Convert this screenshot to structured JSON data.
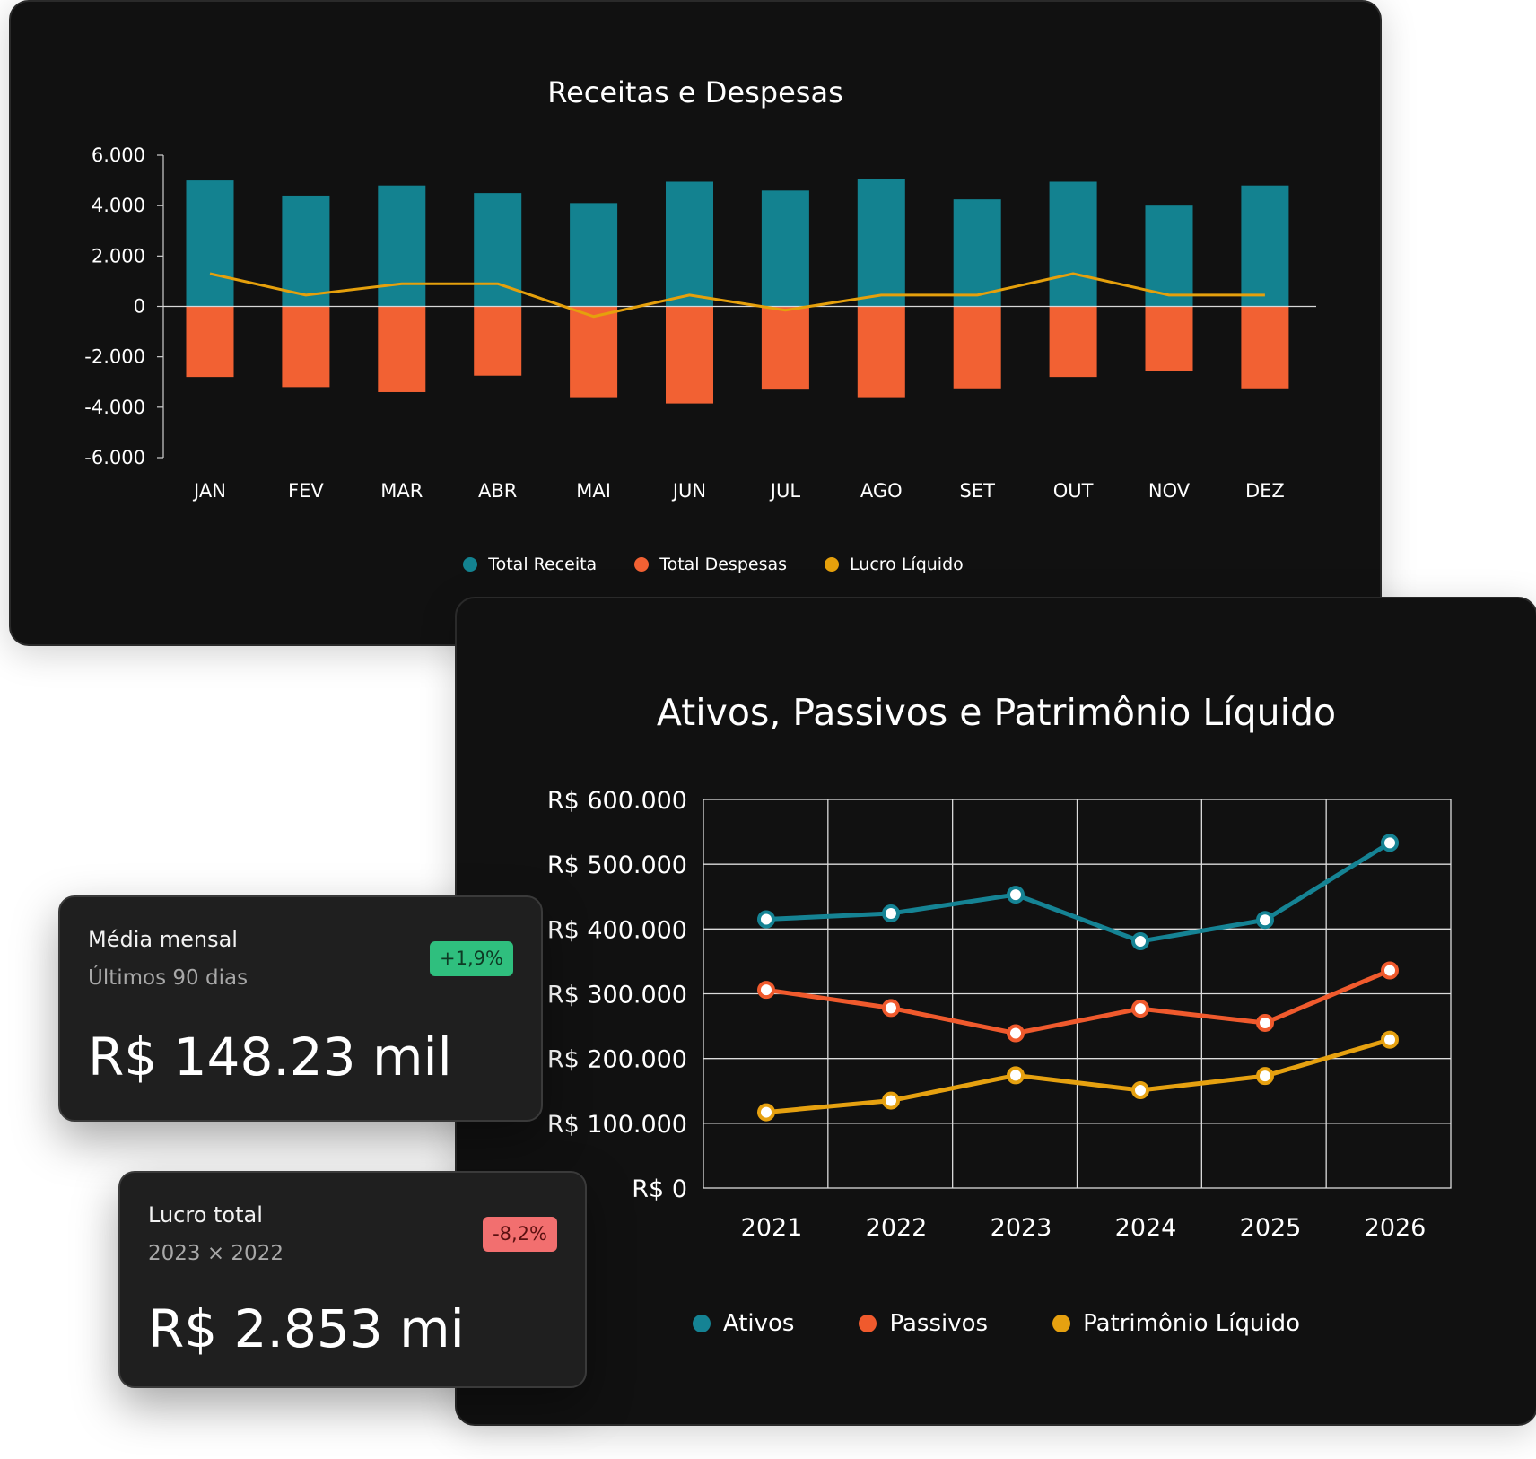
{
  "colors": {
    "receita": "#138290",
    "despesas": "#f26133",
    "lucro": "#e5a00c",
    "ativos": "#158394",
    "passivos": "#f05a2d",
    "patrimonio": "#e6a110"
  },
  "chart_data": [
    {
      "type": "bar",
      "title": "Receitas e Despesas",
      "categories": [
        "JAN",
        "FEV",
        "MAR",
        "ABR",
        "MAI",
        "JUN",
        "JUL",
        "AGO",
        "SET",
        "OUT",
        "NOV",
        "DEZ"
      ],
      "ylim": [
        -6000,
        6000
      ],
      "yticks": [
        "6.000",
        "4.000",
        "2.000",
        "0",
        "-2.000",
        "-4.000",
        "-6.000"
      ],
      "ytick_values": [
        6000,
        4000,
        2000,
        0,
        -2000,
        -4000,
        -6000
      ],
      "series": [
        {
          "name": "Total Receita",
          "kind": "bar",
          "values": [
            5000,
            4400,
            4800,
            4500,
            4100,
            4950,
            4600,
            5050,
            4250,
            4950,
            4000,
            4800
          ]
        },
        {
          "name": "Total Despesas",
          "kind": "bar",
          "values": [
            -2800,
            -3200,
            -3400,
            -2750,
            -3600,
            -3850,
            -3300,
            -3600,
            -3250,
            -2800,
            -2550,
            -3250
          ]
        },
        {
          "name": "Lucro Líquido",
          "kind": "line",
          "values": [
            1300,
            450,
            900,
            900,
            -400,
            450,
            -150,
            450,
            450,
            1300,
            450,
            450
          ]
        }
      ],
      "legend": "bottom",
      "grid": false
    },
    {
      "type": "line",
      "title": "Ativos, Passivos e Patrimônio Líquido",
      "x": [
        "2021",
        "2022",
        "2023",
        "2024",
        "2025",
        "2026"
      ],
      "ylim": [
        0,
        600000
      ],
      "yticks": [
        "R$ 600.000",
        "R$ 500.000",
        "R$ 400.000",
        "R$ 300.000",
        "R$ 200.000",
        "R$ 100.000",
        "R$ 0"
      ],
      "ytick_values": [
        600000,
        500000,
        400000,
        300000,
        200000,
        100000,
        0
      ],
      "series": [
        {
          "name": "Ativos",
          "values": [
            415000,
            424000,
            453000,
            381000,
            414000,
            533000
          ]
        },
        {
          "name": "Passivos",
          "values": [
            306000,
            278000,
            239000,
            277000,
            255000,
            336000
          ]
        },
        {
          "name": "Patrimônio Líquido",
          "values": [
            117000,
            135000,
            174000,
            151000,
            173000,
            229000
          ]
        }
      ],
      "legend": "bottom",
      "grid": true
    }
  ],
  "kpis": [
    {
      "title": "Média mensal",
      "subtitle": "Últimos 90 dias",
      "value": "R$ 148.23 mil",
      "badge": "+1,9%"
    },
    {
      "title": "Lucro total",
      "subtitle": "2023 × 2022",
      "value": "R$ 2.853 mi",
      "badge": "-8,2%"
    }
  ]
}
